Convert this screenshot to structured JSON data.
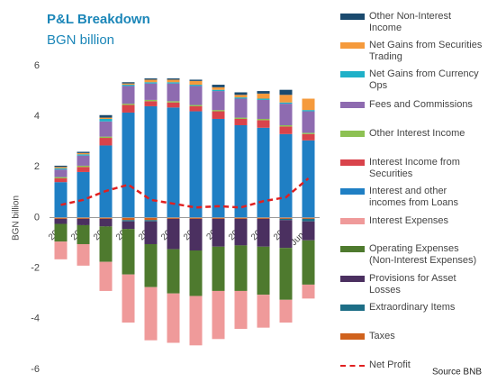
{
  "chart_data": {
    "type": "bar",
    "stacked": true,
    "title": "P&L Breakdown",
    "subtitle": "BGN billion",
    "y_label": "BGN billion",
    "source": "Source BNB",
    "categories": [
      "2004",
      "2005",
      "2006",
      "2007",
      "2008",
      "2009",
      "2010",
      "2011",
      "2012",
      "2013",
      "2014",
      "Jun-15"
    ],
    "ylim": [
      -6,
      6
    ],
    "yticks": [
      -6,
      -4,
      -2,
      0,
      2,
      4,
      6
    ],
    "grid": false,
    "series": [
      {
        "name": "Other Non-Interest Income",
        "color": "#1a4a6e",
        "values": [
          0.05,
          0.05,
          0.1,
          0.05,
          0.05,
          0.05,
          0.05,
          0.1,
          0.1,
          0.1,
          0.2,
          0.0
        ]
      },
      {
        "name": "Net Gains from Securities Trading",
        "color": "#f59a3c",
        "values": [
          0.05,
          0.05,
          0.05,
          0.05,
          0.1,
          0.1,
          0.15,
          0.1,
          0.1,
          0.2,
          0.3,
          0.45
        ]
      },
      {
        "name": "Net Gains from Currency Ops",
        "color": "#1fb0c8",
        "values": [
          0.05,
          0.05,
          0.1,
          0.05,
          0.05,
          0.05,
          0.05,
          0.05,
          0.05,
          0.05,
          0.05,
          0.05
        ]
      },
      {
        "name": "Fees and Commissions",
        "color": "#8e6bb0",
        "values": [
          0.3,
          0.4,
          0.6,
          0.7,
          0.65,
          0.7,
          0.75,
          0.75,
          0.75,
          0.75,
          0.85,
          0.85
        ]
      },
      {
        "name": "Other Interest Income",
        "color": "#8dc153",
        "values": [
          0.05,
          0.05,
          0.05,
          0.05,
          0.05,
          0.05,
          0.05,
          0.05,
          0.05,
          0.05,
          0.05,
          0.05
        ]
      },
      {
        "name": "Interest Income from Securities",
        "color": "#d9434b",
        "values": [
          0.15,
          0.2,
          0.3,
          0.3,
          0.2,
          0.2,
          0.2,
          0.3,
          0.25,
          0.3,
          0.3,
          0.25
        ]
      },
      {
        "name": "Interest and other incomes from Loans",
        "color": "#1f7fc4",
        "values": [
          1.4,
          1.8,
          2.85,
          4.15,
          4.4,
          4.35,
          4.2,
          3.9,
          3.65,
          3.55,
          3.3,
          3.05
        ]
      },
      {
        "name": "Interest Expenses",
        "color": "#ef9a9a",
        "values": [
          -0.7,
          -0.85,
          -1.15,
          -1.9,
          -2.1,
          -1.95,
          -1.95,
          -1.9,
          -1.5,
          -1.3,
          -0.9,
          -0.55
        ]
      },
      {
        "name": "Operating Expenses (Non-Interest Expenses)",
        "color": "#4e7a2e",
        "values": [
          -0.7,
          -0.75,
          -1.4,
          -1.8,
          -1.7,
          -1.75,
          -1.8,
          -1.75,
          -1.8,
          -1.9,
          -2.05,
          -1.75
        ]
      },
      {
        "name": "Provisions for Asset Losses",
        "color": "#4b3060",
        "values": [
          -0.2,
          -0.25,
          -0.3,
          -0.3,
          -0.9,
          -1.2,
          -1.25,
          -1.1,
          -1.05,
          -1.1,
          -1.1,
          -0.75
        ]
      },
      {
        "name": "Extraordinary Items",
        "color": "#1d6e86",
        "values": [
          0.0,
          0.0,
          0.0,
          -0.05,
          -0.05,
          0.0,
          0.0,
          0.0,
          0.0,
          0.0,
          -0.05,
          -0.1
        ]
      },
      {
        "name": "Taxes",
        "color": "#d0621d",
        "values": [
          -0.05,
          -0.05,
          -0.05,
          -0.1,
          -0.1,
          -0.05,
          -0.05,
          -0.05,
          -0.05,
          -0.05,
          -0.05,
          -0.05
        ]
      },
      {
        "name": "Net Profit",
        "color": "#e02020",
        "type": "line",
        "values": [
          0.5,
          0.7,
          1.05,
          1.3,
          0.7,
          0.55,
          0.4,
          0.45,
          0.4,
          0.65,
          0.8,
          1.55
        ]
      }
    ]
  }
}
